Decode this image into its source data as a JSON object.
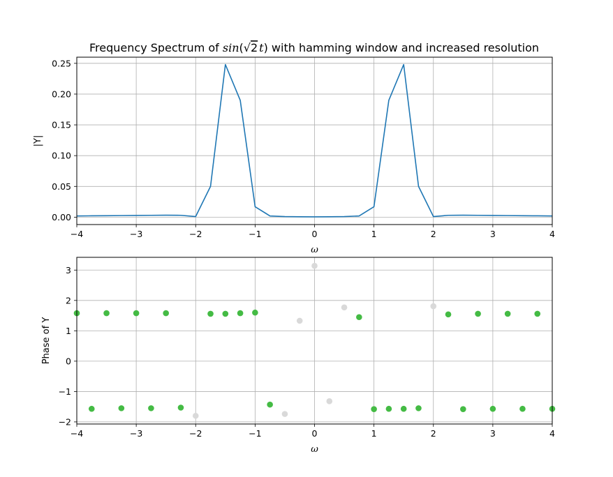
{
  "chart_data": [
    {
      "type": "line",
      "title": {
        "prefix": "Frequency Spectrum of ",
        "fn": "sin",
        "radicand": "2",
        "var": "t",
        "suffix": " with hamming window and increased resolution"
      },
      "xlabel": "ω",
      "ylabel": "|Y|",
      "xlim": [
        -4,
        4
      ],
      "ylim": [
        -0.012,
        0.26
      ],
      "xticks": [
        -4,
        -3,
        -2,
        -1,
        0,
        1,
        2,
        3,
        4
      ],
      "yticks": [
        0.0,
        0.05,
        0.1,
        0.15,
        0.2,
        0.25
      ],
      "ytick_labels": [
        "0.00",
        "0.05",
        "0.10",
        "0.15",
        "0.20",
        "0.25"
      ],
      "grid": true,
      "color": "#1f77b4",
      "x": [
        -4.0,
        -3.75,
        -3.5,
        -3.25,
        -3.0,
        -2.75,
        -2.5,
        -2.25,
        -2.0,
        -1.75,
        -1.5,
        -1.25,
        -1.0,
        -0.75,
        -0.5,
        -0.25,
        0.0,
        0.25,
        0.5,
        0.75,
        1.0,
        1.25,
        1.5,
        1.75,
        2.0,
        2.25,
        2.5,
        2.75,
        3.0,
        3.25,
        3.5,
        3.75,
        4.0
      ],
      "y": [
        0.002,
        0.0022,
        0.0024,
        0.0026,
        0.0028,
        0.003,
        0.0032,
        0.003,
        0.001,
        0.05,
        0.248,
        0.19,
        0.017,
        0.002,
        0.001,
        0.0007,
        0.0005,
        0.0007,
        0.001,
        0.002,
        0.017,
        0.19,
        0.248,
        0.05,
        0.001,
        0.003,
        0.0032,
        0.003,
        0.0028,
        0.0026,
        0.0024,
        0.0022,
        0.002
      ]
    },
    {
      "type": "scatter",
      "xlabel": "ω",
      "ylabel": "Phase of Y",
      "xlim": [
        -4,
        4
      ],
      "ylim": [
        -2.07,
        3.42
      ],
      "xticks": [
        -4,
        -3,
        -2,
        -1,
        0,
        1,
        2,
        3,
        4
      ],
      "yticks": [
        -2,
        -1,
        0,
        1,
        2,
        3
      ],
      "grid": true,
      "series": [
        {
          "color": "#44bb44",
          "points": [
            [
              -4.0,
              1.58
            ],
            [
              -3.75,
              -1.57
            ],
            [
              -3.5,
              1.58
            ],
            [
              -3.25,
              -1.55
            ],
            [
              -3.0,
              1.58
            ],
            [
              -2.75,
              -1.55
            ],
            [
              -2.5,
              1.58
            ],
            [
              -2.25,
              -1.53
            ],
            [
              -1.75,
              1.56
            ],
            [
              -1.5,
              1.56
            ],
            [
              -1.25,
              1.58
            ],
            [
              -1.0,
              1.6
            ],
            [
              -0.75,
              -1.43
            ],
            [
              0.75,
              1.45
            ],
            [
              1.0,
              -1.58
            ],
            [
              1.25,
              -1.57
            ],
            [
              1.5,
              -1.57
            ],
            [
              1.75,
              -1.55
            ],
            [
              2.25,
              1.54
            ],
            [
              2.5,
              -1.58
            ],
            [
              2.75,
              1.56
            ],
            [
              3.0,
              -1.57
            ],
            [
              3.25,
              1.56
            ],
            [
              3.5,
              -1.57
            ],
            [
              3.75,
              1.56
            ],
            [
              4.0,
              -1.57
            ]
          ]
        },
        {
          "color": "#d9d9d9",
          "points": [
            [
              -2.0,
              -1.8
            ],
            [
              -0.5,
              -1.74
            ],
            [
              -0.25,
              1.33
            ],
            [
              0.0,
              3.14
            ],
            [
              0.25,
              -1.32
            ],
            [
              0.5,
              1.77
            ],
            [
              2.0,
              1.81
            ]
          ]
        }
      ]
    }
  ]
}
